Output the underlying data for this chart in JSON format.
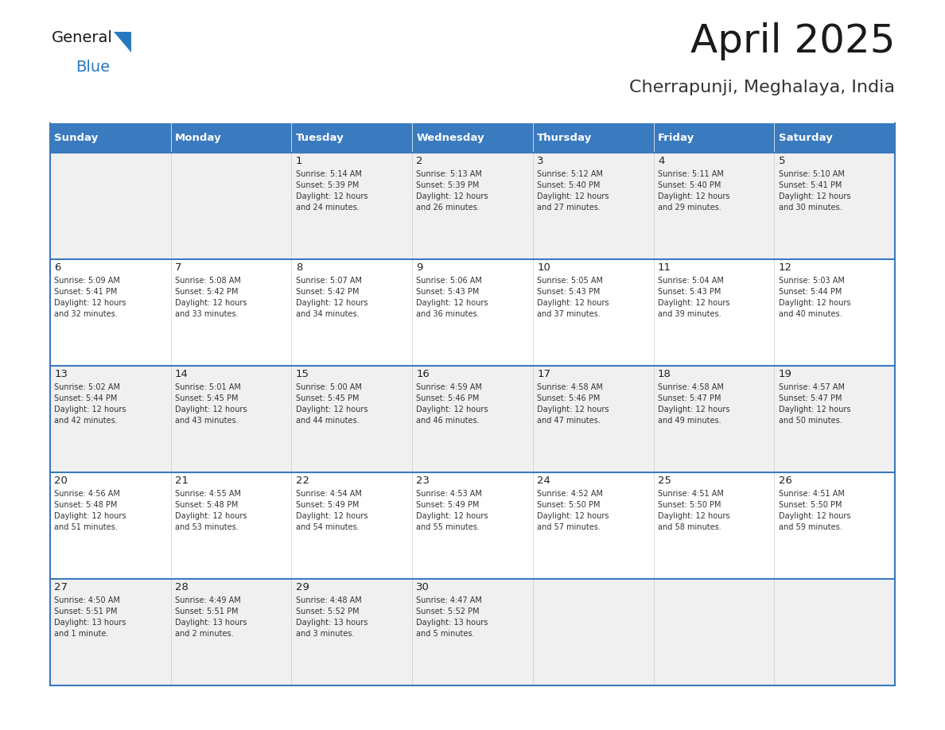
{
  "title": "April 2025",
  "subtitle": "Cherrapunji, Meghalaya, India",
  "header_bg_color": "#3a7abf",
  "header_text_color": "#ffffff",
  "cell_bg_even": "#f0f0f0",
  "cell_bg_odd": "#ffffff",
  "day_headers": [
    "Sunday",
    "Monday",
    "Tuesday",
    "Wednesday",
    "Thursday",
    "Friday",
    "Saturday"
  ],
  "title_color": "#1a1a1a",
  "subtitle_color": "#333333",
  "cell_text_color": "#333333",
  "cell_day_color": "#222222",
  "divider_color": "#3a7abf",
  "logo_general_color": "#1a1a1a",
  "logo_blue_color": "#2878be",
  "weeks": [
    [
      {
        "day": "",
        "sunrise": "",
        "sunset": "",
        "daylight": ""
      },
      {
        "day": "",
        "sunrise": "",
        "sunset": "",
        "daylight": ""
      },
      {
        "day": "1",
        "sunrise": "Sunrise: 5:14 AM",
        "sunset": "Sunset: 5:39 PM",
        "daylight": "Daylight: 12 hours\nand 24 minutes."
      },
      {
        "day": "2",
        "sunrise": "Sunrise: 5:13 AM",
        "sunset": "Sunset: 5:39 PM",
        "daylight": "Daylight: 12 hours\nand 26 minutes."
      },
      {
        "day": "3",
        "sunrise": "Sunrise: 5:12 AM",
        "sunset": "Sunset: 5:40 PM",
        "daylight": "Daylight: 12 hours\nand 27 minutes."
      },
      {
        "day": "4",
        "sunrise": "Sunrise: 5:11 AM",
        "sunset": "Sunset: 5:40 PM",
        "daylight": "Daylight: 12 hours\nand 29 minutes."
      },
      {
        "day": "5",
        "sunrise": "Sunrise: 5:10 AM",
        "sunset": "Sunset: 5:41 PM",
        "daylight": "Daylight: 12 hours\nand 30 minutes."
      }
    ],
    [
      {
        "day": "6",
        "sunrise": "Sunrise: 5:09 AM",
        "sunset": "Sunset: 5:41 PM",
        "daylight": "Daylight: 12 hours\nand 32 minutes."
      },
      {
        "day": "7",
        "sunrise": "Sunrise: 5:08 AM",
        "sunset": "Sunset: 5:42 PM",
        "daylight": "Daylight: 12 hours\nand 33 minutes."
      },
      {
        "day": "8",
        "sunrise": "Sunrise: 5:07 AM",
        "sunset": "Sunset: 5:42 PM",
        "daylight": "Daylight: 12 hours\nand 34 minutes."
      },
      {
        "day": "9",
        "sunrise": "Sunrise: 5:06 AM",
        "sunset": "Sunset: 5:43 PM",
        "daylight": "Daylight: 12 hours\nand 36 minutes."
      },
      {
        "day": "10",
        "sunrise": "Sunrise: 5:05 AM",
        "sunset": "Sunset: 5:43 PM",
        "daylight": "Daylight: 12 hours\nand 37 minutes."
      },
      {
        "day": "11",
        "sunrise": "Sunrise: 5:04 AM",
        "sunset": "Sunset: 5:43 PM",
        "daylight": "Daylight: 12 hours\nand 39 minutes."
      },
      {
        "day": "12",
        "sunrise": "Sunrise: 5:03 AM",
        "sunset": "Sunset: 5:44 PM",
        "daylight": "Daylight: 12 hours\nand 40 minutes."
      }
    ],
    [
      {
        "day": "13",
        "sunrise": "Sunrise: 5:02 AM",
        "sunset": "Sunset: 5:44 PM",
        "daylight": "Daylight: 12 hours\nand 42 minutes."
      },
      {
        "day": "14",
        "sunrise": "Sunrise: 5:01 AM",
        "sunset": "Sunset: 5:45 PM",
        "daylight": "Daylight: 12 hours\nand 43 minutes."
      },
      {
        "day": "15",
        "sunrise": "Sunrise: 5:00 AM",
        "sunset": "Sunset: 5:45 PM",
        "daylight": "Daylight: 12 hours\nand 44 minutes."
      },
      {
        "day": "16",
        "sunrise": "Sunrise: 4:59 AM",
        "sunset": "Sunset: 5:46 PM",
        "daylight": "Daylight: 12 hours\nand 46 minutes."
      },
      {
        "day": "17",
        "sunrise": "Sunrise: 4:58 AM",
        "sunset": "Sunset: 5:46 PM",
        "daylight": "Daylight: 12 hours\nand 47 minutes."
      },
      {
        "day": "18",
        "sunrise": "Sunrise: 4:58 AM",
        "sunset": "Sunset: 5:47 PM",
        "daylight": "Daylight: 12 hours\nand 49 minutes."
      },
      {
        "day": "19",
        "sunrise": "Sunrise: 4:57 AM",
        "sunset": "Sunset: 5:47 PM",
        "daylight": "Daylight: 12 hours\nand 50 minutes."
      }
    ],
    [
      {
        "day": "20",
        "sunrise": "Sunrise: 4:56 AM",
        "sunset": "Sunset: 5:48 PM",
        "daylight": "Daylight: 12 hours\nand 51 minutes."
      },
      {
        "day": "21",
        "sunrise": "Sunrise: 4:55 AM",
        "sunset": "Sunset: 5:48 PM",
        "daylight": "Daylight: 12 hours\nand 53 minutes."
      },
      {
        "day": "22",
        "sunrise": "Sunrise: 4:54 AM",
        "sunset": "Sunset: 5:49 PM",
        "daylight": "Daylight: 12 hours\nand 54 minutes."
      },
      {
        "day": "23",
        "sunrise": "Sunrise: 4:53 AM",
        "sunset": "Sunset: 5:49 PM",
        "daylight": "Daylight: 12 hours\nand 55 minutes."
      },
      {
        "day": "24",
        "sunrise": "Sunrise: 4:52 AM",
        "sunset": "Sunset: 5:50 PM",
        "daylight": "Daylight: 12 hours\nand 57 minutes."
      },
      {
        "day": "25",
        "sunrise": "Sunrise: 4:51 AM",
        "sunset": "Sunset: 5:50 PM",
        "daylight": "Daylight: 12 hours\nand 58 minutes."
      },
      {
        "day": "26",
        "sunrise": "Sunrise: 4:51 AM",
        "sunset": "Sunset: 5:50 PM",
        "daylight": "Daylight: 12 hours\nand 59 minutes."
      }
    ],
    [
      {
        "day": "27",
        "sunrise": "Sunrise: 4:50 AM",
        "sunset": "Sunset: 5:51 PM",
        "daylight": "Daylight: 13 hours\nand 1 minute."
      },
      {
        "day": "28",
        "sunrise": "Sunrise: 4:49 AM",
        "sunset": "Sunset: 5:51 PM",
        "daylight": "Daylight: 13 hours\nand 2 minutes."
      },
      {
        "day": "29",
        "sunrise": "Sunrise: 4:48 AM",
        "sunset": "Sunset: 5:52 PM",
        "daylight": "Daylight: 13 hours\nand 3 minutes."
      },
      {
        "day": "30",
        "sunrise": "Sunrise: 4:47 AM",
        "sunset": "Sunset: 5:52 PM",
        "daylight": "Daylight: 13 hours\nand 5 minutes."
      },
      {
        "day": "",
        "sunrise": "",
        "sunset": "",
        "daylight": ""
      },
      {
        "day": "",
        "sunrise": "",
        "sunset": "",
        "daylight": ""
      },
      {
        "day": "",
        "sunrise": "",
        "sunset": "",
        "daylight": ""
      }
    ]
  ]
}
